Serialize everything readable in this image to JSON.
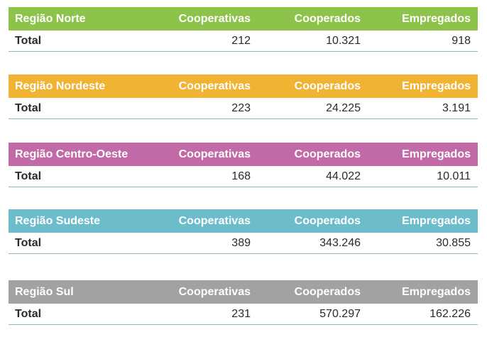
{
  "columns": {
    "cooperativas": "Cooperativas",
    "cooperados": "Cooperados",
    "empregados": "Empregados"
  },
  "row_label": "Total",
  "regions": [
    {
      "name": "Região Norte",
      "color": "#8dc34a",
      "cooperativas": "212",
      "cooperados": "10.321",
      "empregados": "918"
    },
    {
      "name": "Região Nordeste",
      "color": "#f0b333",
      "cooperativas": "223",
      "cooperados": "24.225",
      "empregados": "3.191"
    },
    {
      "name": "Região Centro-Oeste",
      "color": "#c26aa8",
      "cooperativas": "168",
      "cooperados": "44.022",
      "empregados": "10.011"
    },
    {
      "name": "Região Sudeste",
      "color": "#6cbccc",
      "cooperativas": "389",
      "cooperados": "343.246",
      "empregados": "30.855"
    },
    {
      "name": "Região Sul",
      "color": "#a2a2a2",
      "cooperativas": "231",
      "cooperados": "570.297",
      "empregados": "162.226"
    }
  ]
}
